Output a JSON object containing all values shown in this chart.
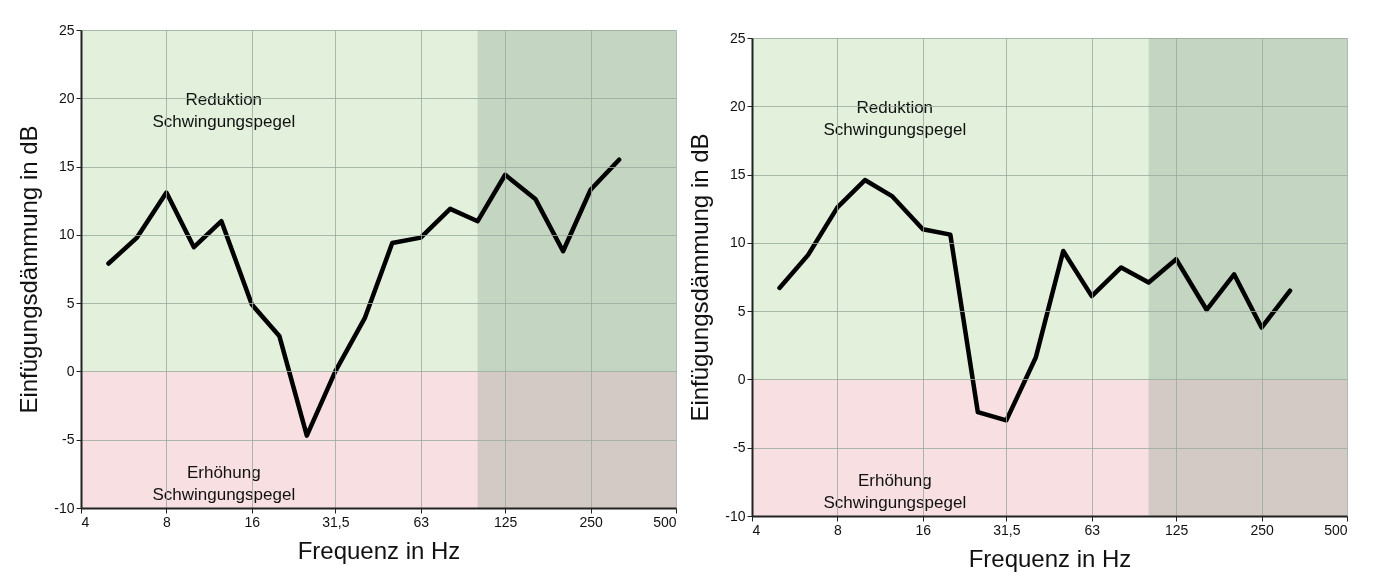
{
  "chart_data": [
    {
      "type": "line",
      "xlabel": "Frequenz in Hz",
      "ylabel": "Einfügungsdämmung in dB",
      "log": "x",
      "grid": true,
      "line_style": "solid",
      "marker": "none",
      "x": [
        5,
        6.3,
        8,
        10,
        12.5,
        16,
        20,
        25,
        31.5,
        40,
        50,
        63,
        80,
        100,
        125,
        160,
        200,
        250,
        315
      ],
      "series": [
        {
          "color": "#000000",
          "values": [
            7.9,
            9.8,
            13.1,
            9.1,
            11.0,
            4.9,
            2.6,
            -4.7,
            0.0,
            3.9,
            9.4,
            9.8,
            11.9,
            11.0,
            14.4,
            12.6,
            8.8,
            13.3,
            15.5
          ]
        }
      ],
      "xlim": [
        4,
        500
      ],
      "xticks": [
        4,
        8,
        16,
        {
          "value": 31.5,
          "label": "31,5"
        },
        63,
        125,
        250,
        500
      ],
      "ylim": [
        -10,
        25
      ],
      "yticks": [
        -10,
        -5,
        0,
        5,
        10,
        15,
        20,
        25
      ],
      "bands": [
        {
          "axis": "y",
          "from": 0,
          "to": 25,
          "label": "Reduktion\nSchwingungspegel",
          "color": "#e2f0dc"
        },
        {
          "axis": "y",
          "from": -10,
          "to": 0,
          "label": "Erhöhung\nSchwingungspegel",
          "color": "#f8dfe2"
        },
        {
          "axis": "x",
          "from": 100,
          "to": 500,
          "color": "#7f9a86"
        }
      ]
    },
    {
      "type": "line",
      "xlabel": "Frequenz in Hz",
      "ylabel": "Einfügungsdämmung in dB",
      "log": "x",
      "grid": true,
      "line_style": "solid",
      "marker": "none",
      "x": [
        5,
        6.3,
        8,
        10,
        12.5,
        16,
        20,
        25,
        31.5,
        40,
        50,
        63,
        80,
        100,
        125,
        160,
        200,
        250,
        315
      ],
      "series": [
        {
          "color": "#000000",
          "values": [
            6.7,
            9.1,
            12.6,
            14.6,
            13.4,
            11.0,
            10.6,
            -2.4,
            -3.0,
            1.6,
            9.4,
            6.1,
            8.2,
            7.1,
            8.8,
            5.1,
            7.7,
            3.8,
            6.5
          ]
        }
      ],
      "xlim": [
        4,
        500
      ],
      "xticks": [
        4,
        8,
        16,
        {
          "value": 31.5,
          "label": "31,5"
        },
        63,
        125,
        250,
        500
      ],
      "ylim": [
        -10,
        25
      ],
      "yticks": [
        -10,
        -5,
        0,
        5,
        10,
        15,
        20,
        25
      ],
      "bands": [
        {
          "axis": "y",
          "from": 0,
          "to": 25,
          "label": "Reduktion\nSchwingungspegel",
          "color": "#e2f0dc"
        },
        {
          "axis": "y",
          "from": -10,
          "to": 0,
          "label": "Erhöhung\nSchwingungspegel",
          "color": "#f8dfe2"
        },
        {
          "axis": "x",
          "from": 100,
          "to": 500,
          "color": "#7f9a86"
        }
      ]
    }
  ]
}
